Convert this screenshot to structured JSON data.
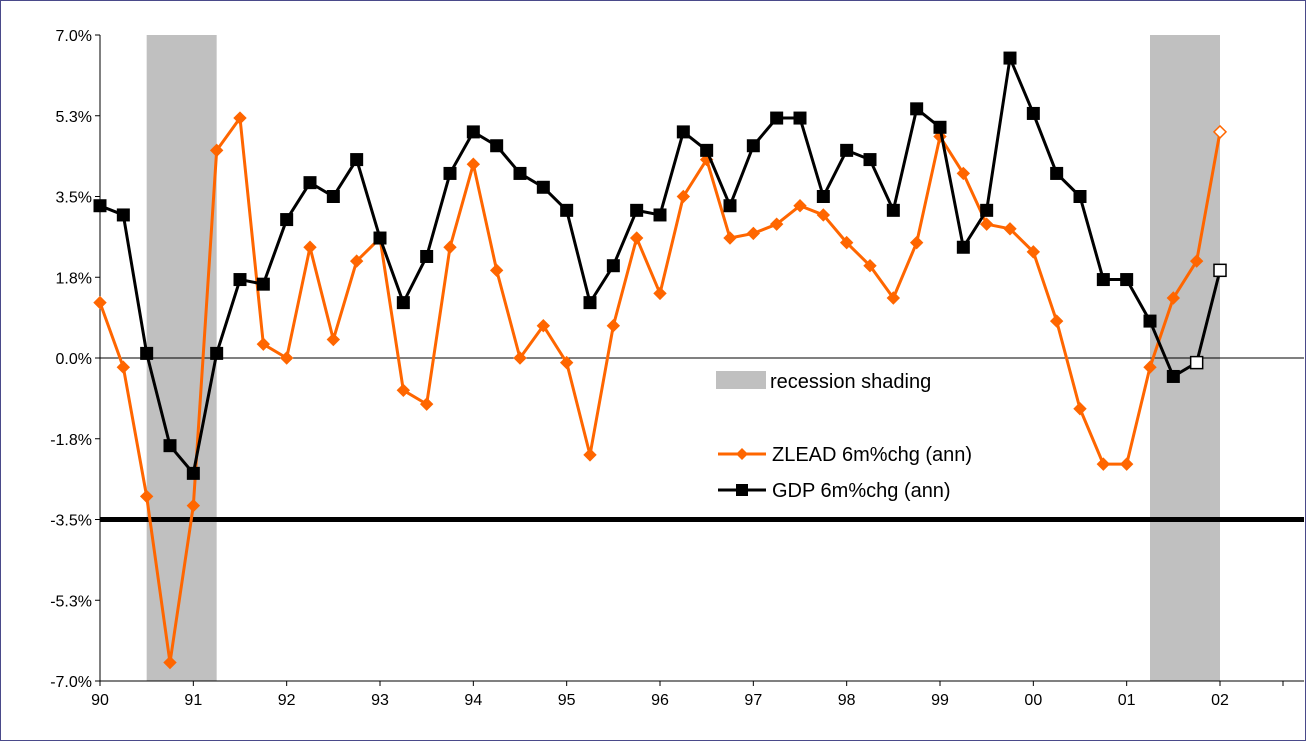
{
  "chart_data": {
    "type": "line",
    "y_tick_labels": [
      "7.0%",
      "5.3%",
      "3.5%",
      "1.8%",
      "0.0%",
      "-1.8%",
      "-3.5%",
      "-5.3%",
      "-7.0%"
    ],
    "x_tick_labels": [
      "90",
      "91",
      "92",
      "93",
      "94",
      "95",
      "96",
      "97",
      "98",
      "99",
      "00",
      "01",
      "02"
    ],
    "ylim": [
      -7.0,
      7.0
    ],
    "xlim": [
      1990,
      2002.9
    ],
    "recessions": [
      [
        1990.5,
        1991.25
      ],
      [
        2001.25,
        2002.0
      ]
    ],
    "reference_line_y": -3.5,
    "legend": {
      "recession_label": "recession shading",
      "zlead_label": "ZLEAD 6m%chg (ann)",
      "gdp_label": "GDP 6m%chg (ann)"
    },
    "series": [
      {
        "name": "ZLEAD 6m%chg (ann)",
        "color": "#ff6600",
        "marker": "diamond",
        "x": [
          1990.0,
          1990.25,
          1990.5,
          1990.75,
          1991.0,
          1991.25,
          1991.5,
          1991.75,
          1992.0,
          1992.25,
          1992.5,
          1992.75,
          1993.0,
          1993.25,
          1993.5,
          1993.75,
          1994.0,
          1994.25,
          1994.5,
          1994.75,
          1995.0,
          1995.25,
          1995.5,
          1995.75,
          1996.0,
          1996.25,
          1996.5,
          1996.75,
          1997.0,
          1997.25,
          1997.5,
          1997.75,
          1998.0,
          1998.25,
          1998.5,
          1998.75,
          1999.0,
          1999.25,
          1999.5,
          1999.75,
          2000.0,
          2000.25,
          2000.5,
          2000.75,
          2001.0,
          2001.25,
          2001.5,
          2001.75,
          2002.0
        ],
        "values": [
          1.2,
          -0.2,
          -3.0,
          -6.6,
          -3.2,
          4.5,
          5.2,
          0.3,
          0.0,
          2.4,
          0.4,
          2.1,
          2.6,
          -0.7,
          -1.0,
          2.4,
          4.2,
          1.9,
          0.0,
          0.7,
          -0.1,
          -2.1,
          0.7,
          2.6,
          1.4,
          3.5,
          4.3,
          2.6,
          2.7,
          2.9,
          3.3,
          3.1,
          2.5,
          2.0,
          1.3,
          2.5,
          4.8,
          4.0,
          2.9,
          2.8,
          2.3,
          0.8,
          -1.1,
          -2.3,
          -2.3,
          -0.2,
          1.3,
          2.1,
          4.9
        ],
        "last_point_hollow": true
      },
      {
        "name": "GDP 6m%chg (ann)",
        "color": "#000000",
        "marker": "square",
        "x": [
          1990.0,
          1990.25,
          1990.5,
          1990.75,
          1991.0,
          1991.25,
          1991.5,
          1991.75,
          1992.0,
          1992.25,
          1992.5,
          1992.75,
          1993.0,
          1993.25,
          1993.5,
          1993.75,
          1994.0,
          1994.25,
          1994.5,
          1994.75,
          1995.0,
          1995.25,
          1995.5,
          1995.75,
          1996.0,
          1996.25,
          1996.5,
          1996.75,
          1997.0,
          1997.25,
          1997.5,
          1997.75,
          1998.0,
          1998.25,
          1998.5,
          1998.75,
          1999.0,
          1999.25,
          1999.5,
          1999.75,
          2000.0,
          2000.25,
          2000.5,
          2000.75,
          2001.0,
          2001.25,
          2001.5,
          2001.75,
          2002.0
        ],
        "values": [
          3.3,
          3.1,
          0.1,
          -1.9,
          -2.5,
          0.1,
          1.7,
          1.6,
          3.0,
          3.8,
          3.5,
          4.3,
          2.6,
          1.2,
          2.2,
          4.0,
          4.9,
          4.6,
          4.0,
          3.7,
          3.2,
          1.2,
          2.0,
          3.2,
          3.1,
          4.9,
          4.5,
          3.3,
          4.6,
          5.2,
          5.2,
          3.5,
          4.5,
          4.3,
          3.2,
          5.4,
          5.0,
          2.4,
          3.2,
          6.5,
          5.3,
          4.0,
          3.5,
          1.7,
          1.7,
          0.8,
          -0.4,
          -0.1,
          1.9
        ],
        "hollow_last_count": 2
      }
    ]
  }
}
